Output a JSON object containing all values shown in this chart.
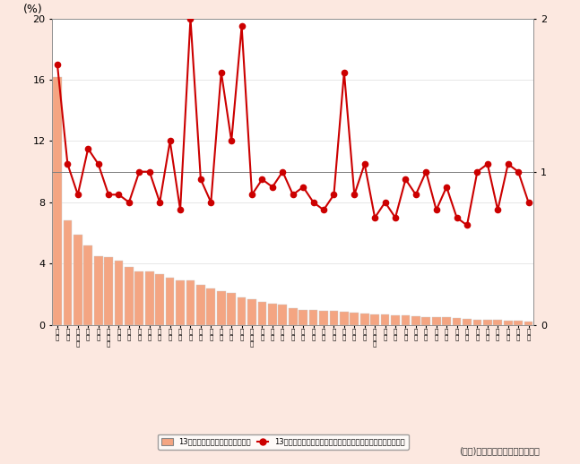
{
  "source": "(出典)「情報流通センサス調査」",
  "bar_values": [
    16.2,
    6.8,
    5.9,
    5.2,
    4.5,
    4.4,
    4.2,
    3.8,
    3.5,
    3.5,
    3.3,
    3.1,
    2.9,
    2.9,
    2.6,
    2.4,
    2.2,
    2.1,
    1.8,
    1.7,
    1.5,
    1.4,
    1.3,
    1.1,
    1.0,
    1.0,
    0.9,
    0.9,
    0.85,
    0.8,
    0.75,
    0.7,
    0.65,
    0.6,
    0.6,
    0.55,
    0.5,
    0.5,
    0.5,
    0.45,
    0.4,
    0.35,
    0.35,
    0.3,
    0.28,
    0.25,
    0.2
  ],
  "line_values": [
    1.7,
    1.05,
    0.85,
    1.15,
    1.05,
    0.85,
    0.85,
    0.8,
    1.0,
    1.0,
    0.8,
    1.2,
    0.75,
    2.0,
    0.95,
    0.8,
    1.65,
    1.2,
    1.95,
    0.85,
    0.95,
    0.9,
    1.0,
    0.85,
    0.9,
    0.8,
    0.75,
    0.85,
    1.65,
    0.85,
    1.05,
    0.7,
    0.8,
    0.7,
    0.95,
    0.85,
    1.0,
    0.75,
    0.9,
    0.7,
    0.65,
    1.0,
    1.05,
    0.75,
    1.05,
    1.0,
    0.8
  ],
  "bar_color": "#f4a582",
  "line_color": "#cc0000",
  "background_color": "#fce8e0",
  "ylim_left": [
    0,
    20
  ],
  "ylim_right": [
    0,
    2
  ],
  "yticks_left": [
    0,
    4,
    8,
    12,
    16,
    20
  ],
  "yticks_right": [
    0,
    1,
    2
  ],
  "hline_value": 1.0,
  "legend_bar_label": "13年度都道府県別シェア（左軸）",
  "legend_line_label": "13年度都道府県別１人当たり発信情報量の全国平均比（右軸）",
  "ylabel_left": "(%)",
  "n_prefectures": 47
}
